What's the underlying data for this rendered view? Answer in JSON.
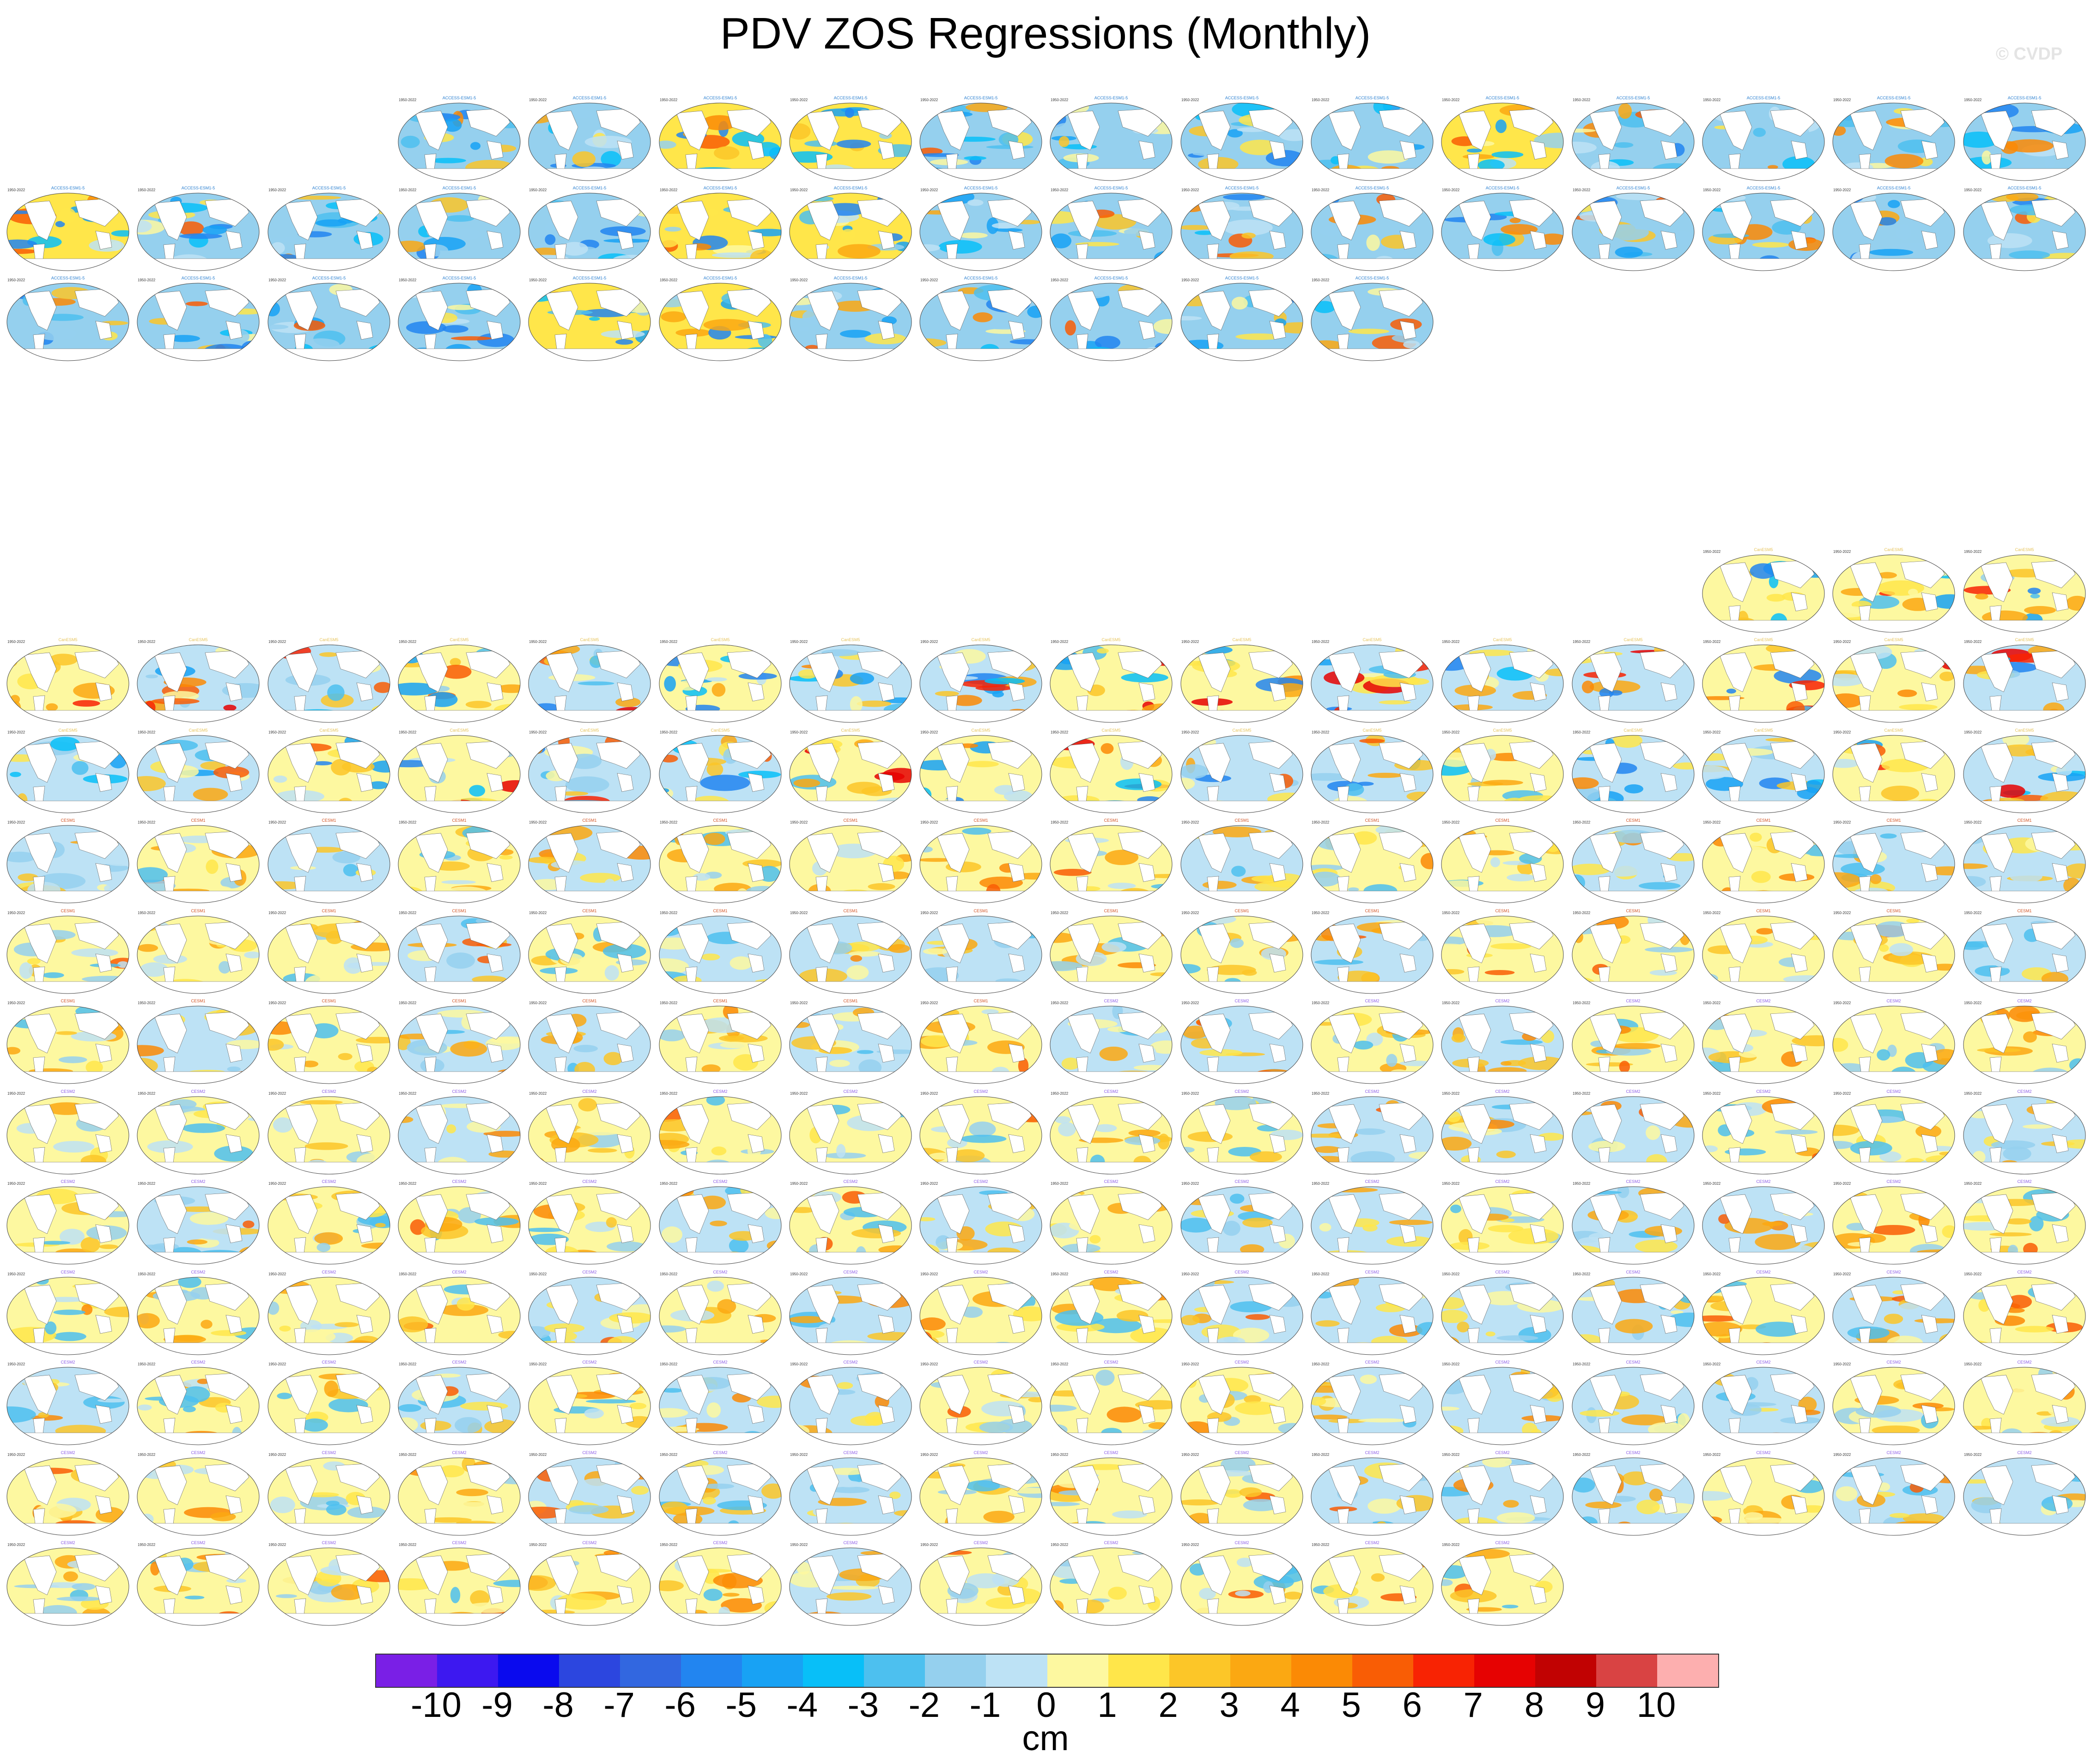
{
  "title": "PDV ZOS Regressions (Monthly)",
  "watermark": "© CVDP",
  "panel_year_label": "1950-2022",
  "colorbar": {
    "units": "cm",
    "tick_labels": [
      "-10",
      "-9",
      "-8",
      "-7",
      "-6",
      "-5",
      "-4",
      "-3",
      "-2",
      "-1",
      "0",
      "1",
      "2",
      "3",
      "4",
      "5",
      "6",
      "7",
      "8",
      "9",
      "10"
    ],
    "colors": [
      "#7a1fe6",
      "#3d18f0",
      "#0a0aee",
      "#2c46df",
      "#3267e0",
      "#2285f0",
      "#18a2f4",
      "#08bff8",
      "#4dc0ef",
      "#95d0ee",
      "#bde2f5",
      "#fdf8a0",
      "#ffe64a",
      "#fcc628",
      "#fba812",
      "#fb8a05",
      "#f95d05",
      "#f82303",
      "#e60202",
      "#c10202",
      "#d94343",
      "#fdafaf"
    ]
  },
  "panel_groups": [
    {
      "model": "ACCESS-ESM1-5",
      "title_color": "#2a7fd0",
      "count": 40,
      "dominant": "blue"
    },
    {
      "model": "CanESM5",
      "title_color": "#e6c35a",
      "count": 35,
      "dominant": "mixed"
    },
    {
      "model": "CESM1",
      "title_color": "#d05020",
      "count": 40,
      "dominant": "yellow"
    },
    {
      "model": "CESM2",
      "title_color": "#8a5ae6",
      "count": 100,
      "dominant": "yellow"
    }
  ]
}
